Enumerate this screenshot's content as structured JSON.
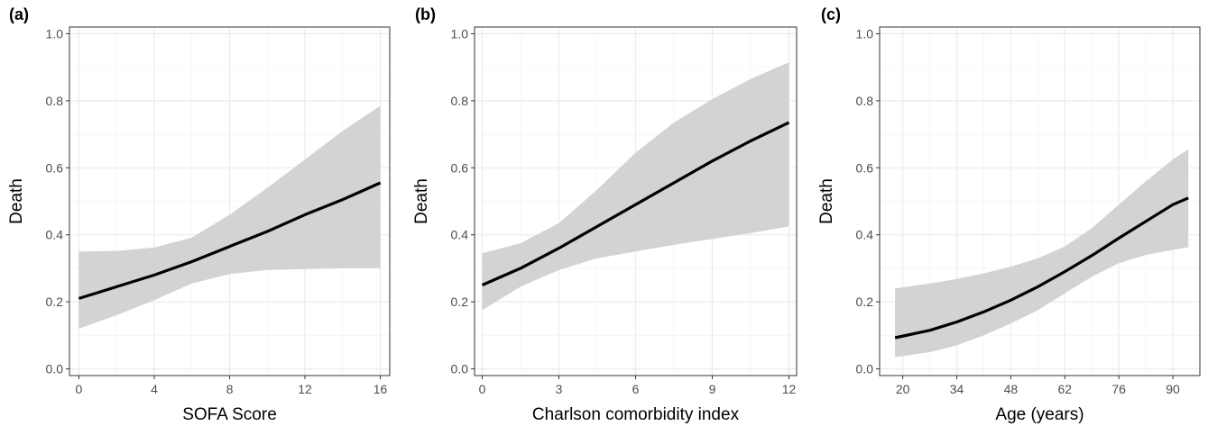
{
  "chart_data": [
    {
      "type": "line",
      "panel_label": "(a)",
      "xlabel": "SOFA Score",
      "ylabel": "Death",
      "xlim": [
        -0.5,
        16.5
      ],
      "ylim": [
        -0.02,
        1.02
      ],
      "xticks": [
        0,
        4,
        8,
        12,
        16
      ],
      "xtick_labels": [
        "0",
        "4",
        "8",
        "12",
        "16"
      ],
      "yticks": [
        0,
        0.2,
        0.4,
        0.6,
        0.8,
        1.0
      ],
      "ytick_labels": [
        "0.0",
        "0.2",
        "0.4",
        "0.6",
        "0.8",
        "1.0"
      ],
      "grid": true,
      "series": [
        {
          "x": [
            0,
            2,
            4,
            6,
            8,
            10,
            12,
            14,
            16
          ],
          "y": [
            0.21,
            0.245,
            0.28,
            0.32,
            0.365,
            0.41,
            0.46,
            0.505,
            0.555
          ],
          "lower": [
            0.12,
            0.16,
            0.205,
            0.255,
            0.283,
            0.295,
            0.298,
            0.3,
            0.3
          ],
          "upper": [
            0.35,
            0.352,
            0.362,
            0.392,
            0.46,
            0.54,
            0.625,
            0.71,
            0.785
          ]
        }
      ]
    },
    {
      "type": "line",
      "panel_label": "(b)",
      "xlabel": "Charlson comorbidity index",
      "ylabel": "Death",
      "xlim": [
        -0.3,
        12.3
      ],
      "ylim": [
        -0.02,
        1.02
      ],
      "xticks": [
        0,
        3,
        6,
        9,
        12
      ],
      "xtick_labels": [
        "0",
        "3",
        "6",
        "9",
        "12"
      ],
      "yticks": [
        0,
        0.2,
        0.4,
        0.6,
        0.8,
        1.0
      ],
      "ytick_labels": [
        "0.0",
        "0.2",
        "0.4",
        "0.6",
        "0.8",
        "1.0"
      ],
      "grid": true,
      "series": [
        {
          "x": [
            0,
            1.5,
            3,
            4.5,
            6,
            7.5,
            9,
            10.5,
            12
          ],
          "y": [
            0.25,
            0.3,
            0.36,
            0.425,
            0.49,
            0.555,
            0.62,
            0.68,
            0.735
          ],
          "lower": [
            0.175,
            0.245,
            0.295,
            0.33,
            0.35,
            0.37,
            0.388,
            0.405,
            0.425
          ],
          "upper": [
            0.345,
            0.375,
            0.435,
            0.535,
            0.645,
            0.735,
            0.805,
            0.865,
            0.915
          ]
        }
      ]
    },
    {
      "type": "line",
      "panel_label": "(c)",
      "xlabel": "Age (years)",
      "ylabel": "Death",
      "xlim": [
        14,
        97
      ],
      "ylim": [
        -0.02,
        1.02
      ],
      "xticks": [
        20,
        34,
        48,
        62,
        76,
        90
      ],
      "xtick_labels": [
        "20",
        "34",
        "48",
        "62",
        "76",
        "90"
      ],
      "grid": true,
      "yticks": [
        0,
        0.2,
        0.4,
        0.6,
        0.8,
        1.0
      ],
      "ytick_labels": [
        "0.0",
        "0.2",
        "0.4",
        "0.6",
        "0.8",
        "1.0"
      ],
      "series": [
        {
          "x": [
            18,
            27,
            34,
            41,
            48,
            55,
            62,
            69,
            76,
            83,
            90,
            94
          ],
          "y": [
            0.093,
            0.115,
            0.14,
            0.17,
            0.205,
            0.245,
            0.29,
            0.338,
            0.39,
            0.44,
            0.49,
            0.51
          ],
          "lower": [
            0.035,
            0.05,
            0.07,
            0.1,
            0.135,
            0.175,
            0.225,
            0.275,
            0.315,
            0.34,
            0.355,
            0.363
          ],
          "upper": [
            0.24,
            0.255,
            0.268,
            0.285,
            0.305,
            0.33,
            0.365,
            0.42,
            0.49,
            0.56,
            0.625,
            0.655
          ]
        }
      ]
    }
  ],
  "colors": {
    "ribbon": "#d3d3d3",
    "line": "#000000",
    "grid_major": "#ebebeb",
    "grid_minor": "#f5f5f5",
    "panel_border": "#333333",
    "tick_text": "#4d4d4d"
  }
}
